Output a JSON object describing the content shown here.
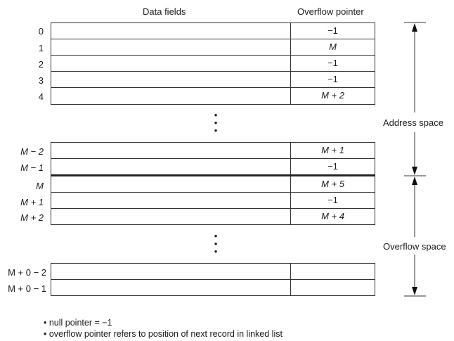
{
  "headers": {
    "data_fields": "Data fields",
    "overflow_pointer": "Overflow pointer"
  },
  "groups": [
    {
      "rows": [
        {
          "label": "0",
          "pointer": "−1"
        },
        {
          "label": "1",
          "pointer": "M"
        },
        {
          "label": "2",
          "pointer": "−1"
        },
        {
          "label": "3",
          "pointer": "−1"
        },
        {
          "label": "4",
          "pointer": "M + 2"
        }
      ]
    },
    {
      "rows": [
        {
          "label": "M − 2",
          "pointer": "M + 1"
        },
        {
          "label": "M − 1",
          "pointer": "−1"
        },
        {
          "label": "M",
          "pointer": "M + 5"
        },
        {
          "label": "M + 1",
          "pointer": "−1"
        },
        {
          "label": "M + 2",
          "pointer": "M + 4"
        }
      ]
    },
    {
      "rows": [
        {
          "label": "M + 0 − 2",
          "pointer": ""
        },
        {
          "label": "M + 0 − 1",
          "pointer": ""
        }
      ]
    }
  ],
  "regions": {
    "address_space": "Address space",
    "overflow_space": "Overflow space"
  },
  "notes": [
    "• null pointer = −1",
    "• overflow pointer refers to position of next record in linked list"
  ]
}
